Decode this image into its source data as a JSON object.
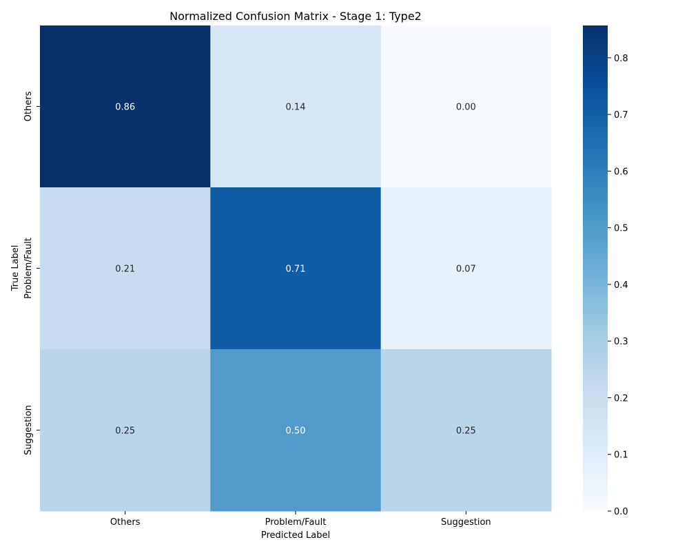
{
  "chart_data": {
    "type": "heatmap",
    "title": "Normalized Confusion Matrix - Stage 1: Type2",
    "xlabel": "Predicted Label",
    "ylabel": "True Label",
    "x_categories": [
      "Others",
      "Problem/Fault",
      "Suggestion"
    ],
    "y_categories": [
      "Others",
      "Problem/Fault",
      "Suggestion"
    ],
    "values": [
      [
        0.86,
        0.14,
        0.0
      ],
      [
        0.21,
        0.71,
        0.07
      ],
      [
        0.25,
        0.5,
        0.25
      ]
    ],
    "value_labels": [
      [
        "0.86",
        "0.14",
        "0.00"
      ],
      [
        "0.21",
        "0.71",
        "0.07"
      ],
      [
        "0.25",
        "0.50",
        "0.25"
      ]
    ],
    "colormap": "Blues",
    "colorbar": {
      "range": [
        0.0,
        0.857
      ],
      "ticks": [
        0.0,
        0.1,
        0.2,
        0.3,
        0.4,
        0.5,
        0.6,
        0.7,
        0.8
      ],
      "tick_labels": [
        "0.0",
        "0.1",
        "0.2",
        "0.3",
        "0.4",
        "0.5",
        "0.6",
        "0.7",
        "0.8"
      ]
    }
  }
}
